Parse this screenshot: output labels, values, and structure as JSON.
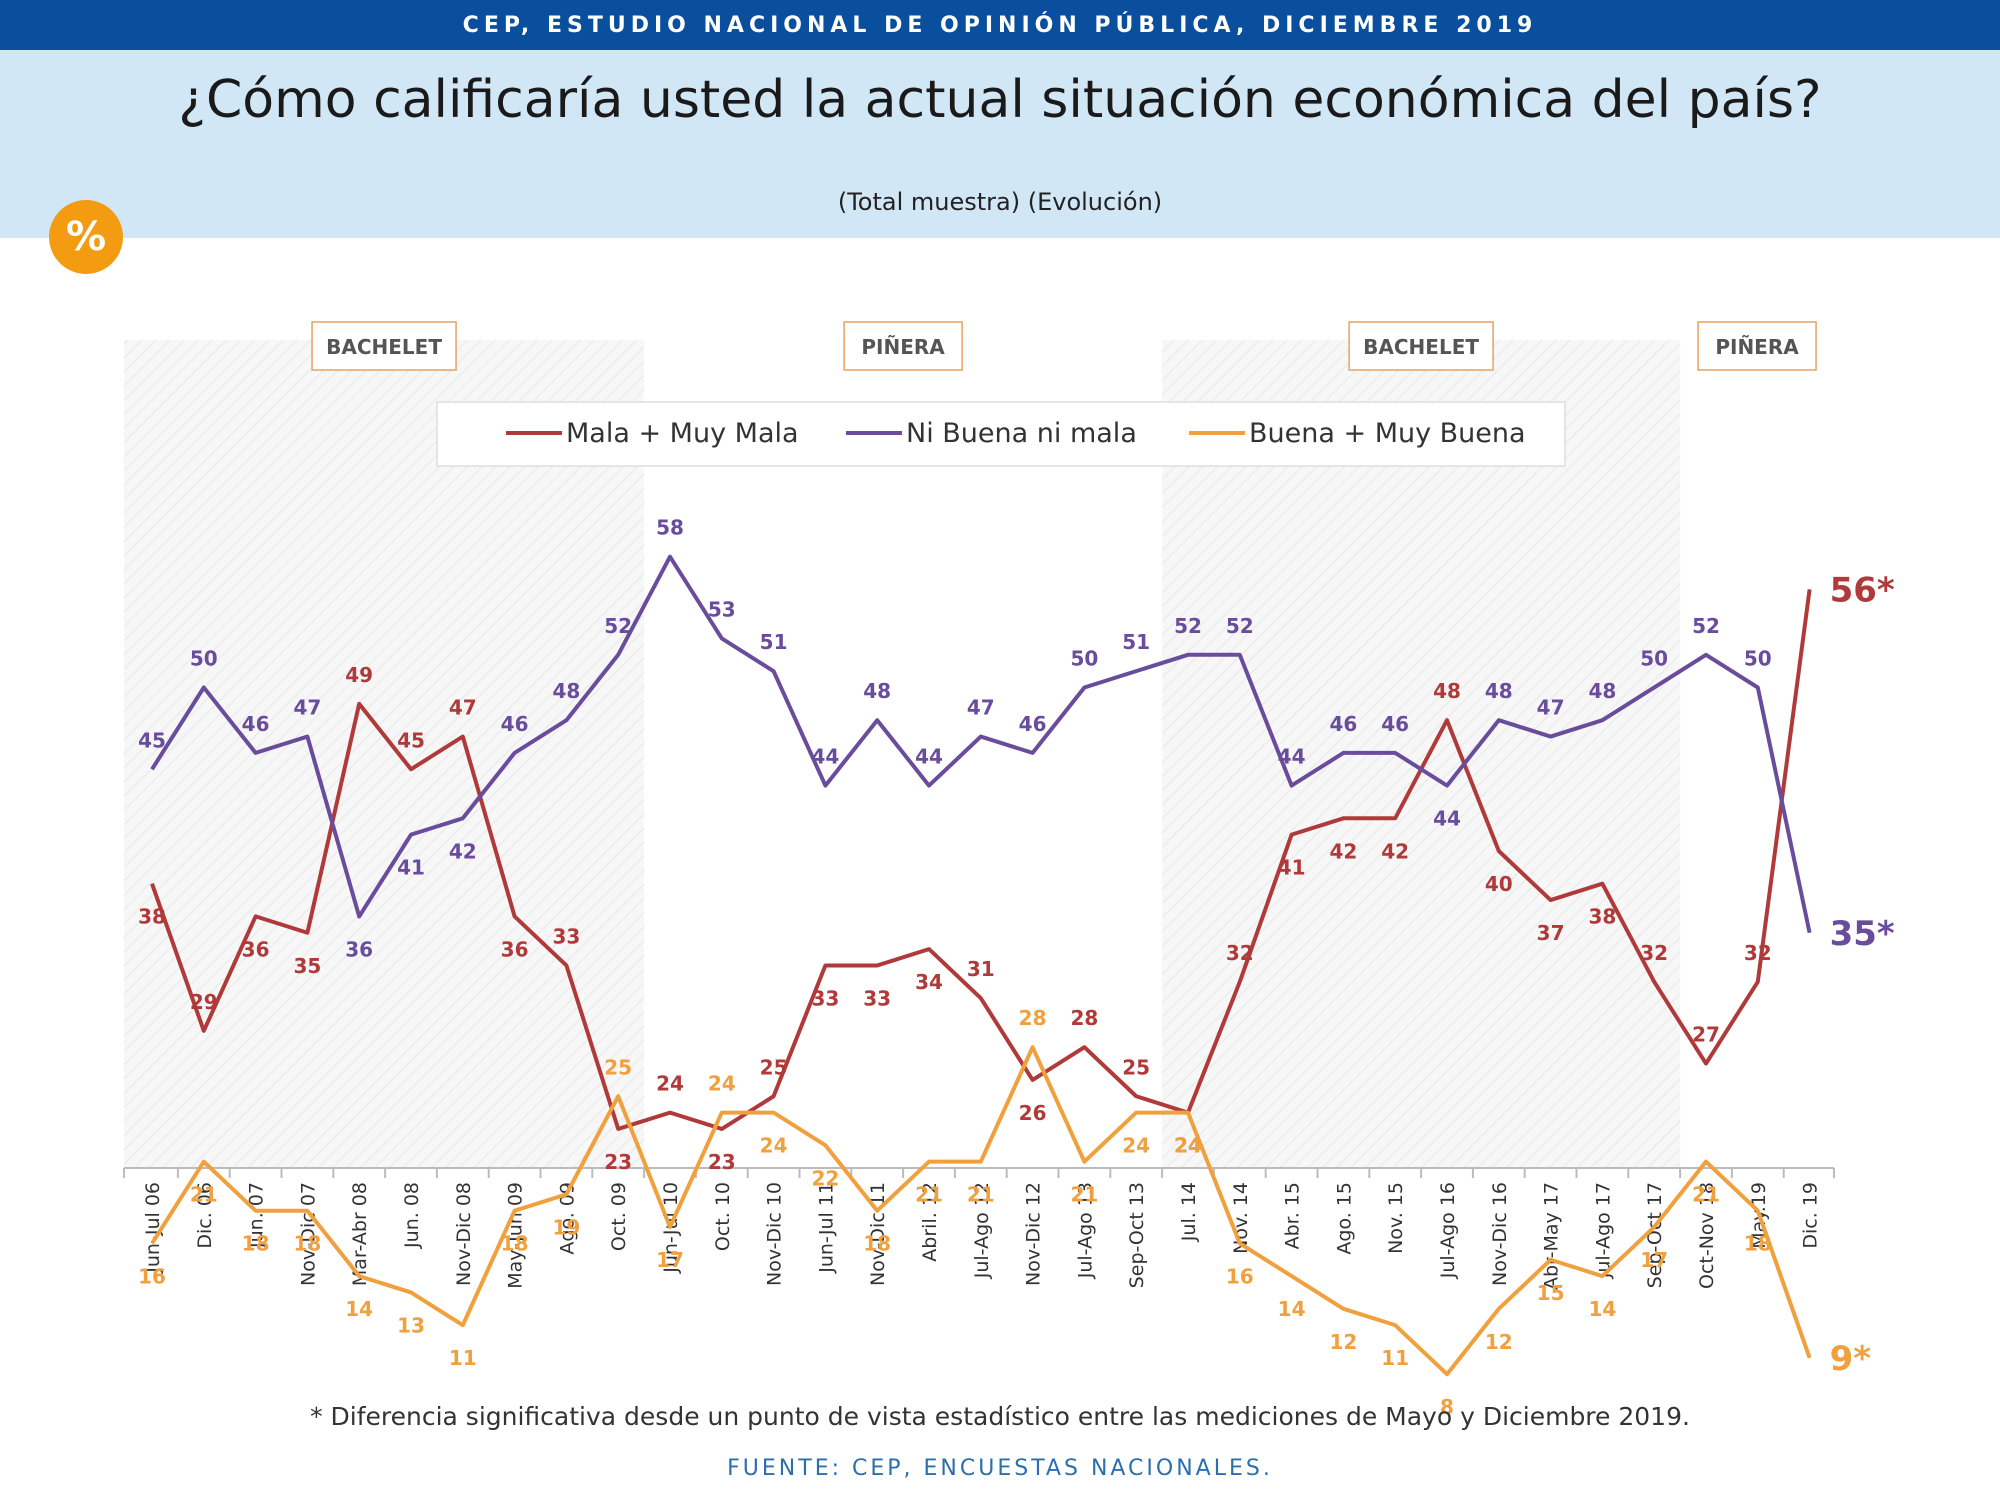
{
  "header": {
    "top_banner": "CEP, ESTUDIO NACIONAL DE OPINIÓN PÚBLICA, DICIEMBRE 2019",
    "title": "¿Cómo calificaría usted la actual situación económica del país?",
    "subtitle": "(Total muestra) (Evolución)",
    "badge": "%"
  },
  "footer": {
    "footnote": "* Diferencia significativa desde un punto de vista estadístico entre las mediciones de Mayo y Diciembre 2019.",
    "source": "FUENTE: CEP, ENCUESTAS NACIONALES."
  },
  "colors": {
    "banner": "#0a4f9e",
    "header_bg": "#d2e7f6",
    "badge": "#f39c12",
    "mala": "#b03a3a",
    "ni": "#6a4c9c",
    "buena": "#f0a03c",
    "period_label_border": "#e8a25a"
  },
  "chart_data": {
    "type": "line",
    "categories": [
      "Jun-Jul 06",
      "Dic. 06",
      "Jun. 07",
      "Nov-Dic 07",
      "Mar-Abr 08",
      "Jun. 08",
      "Nov-Dic 08",
      "May-Jun 09",
      "Ago. 09",
      "Oct. 09",
      "Jun-Jul 10",
      "Oct. 10",
      "Nov-Dic 10",
      "Jun-Jul 11",
      "Nov-Dic 11",
      "Abril. 12",
      "Jul-Ago 12",
      "Nov-Dic 12",
      "Jul-Ago 13",
      "Sep-Oct 13",
      "Jul. 14",
      "Nov. 14",
      "Abr. 15",
      "Ago. 15",
      "Nov. 15",
      "Jul-Ago 16",
      "Nov-Dic 16",
      "Abr-May 17",
      "Jul-Ago 17",
      "Sep-Oct 17",
      "Oct-Nov 18",
      "May.19",
      "Dic. 19"
    ],
    "series": [
      {
        "name": "Mala + Muy Mala",
        "color_key": "mala",
        "values": [
          38,
          29,
          36,
          35,
          49,
          45,
          47,
          36,
          33,
          23,
          24,
          23,
          25,
          33,
          33,
          34,
          31,
          26,
          28,
          25,
          24,
          32,
          41,
          42,
          42,
          48,
          40,
          37,
          38,
          32,
          27,
          32,
          56
        ],
        "end_label": "56*"
      },
      {
        "name": "Ni Buena ni mala",
        "color_key": "ni",
        "values": [
          45,
          50,
          46,
          47,
          36,
          41,
          42,
          46,
          48,
          52,
          58,
          53,
          51,
          44,
          48,
          44,
          47,
          46,
          50,
          51,
          52,
          52,
          44,
          46,
          46,
          44,
          48,
          47,
          48,
          50,
          52,
          50,
          35
        ],
        "end_label": "35*"
      },
      {
        "name": "Buena + Muy Buena",
        "color_key": "buena",
        "values": [
          16,
          21,
          18,
          18,
          14,
          13,
          11,
          18,
          19,
          25,
          17,
          24,
          24,
          22,
          18,
          21,
          21,
          28,
          21,
          24,
          24,
          16,
          14,
          12,
          11,
          8,
          12,
          15,
          14,
          17,
          21,
          18,
          9
        ],
        "end_label": "9*"
      }
    ],
    "periods": [
      {
        "label": "BACHELET",
        "start": 0,
        "end": 9,
        "shaded": true
      },
      {
        "label": "PIÑERA",
        "start": 10,
        "end": 19,
        "shaded": false
      },
      {
        "label": "BACHELET",
        "start": 20,
        "end": 29,
        "shaded": true
      },
      {
        "label": "PIÑERA",
        "start": 30,
        "end": 32,
        "shaded": false
      }
    ],
    "legend_position": "top-center",
    "grid": false
  }
}
